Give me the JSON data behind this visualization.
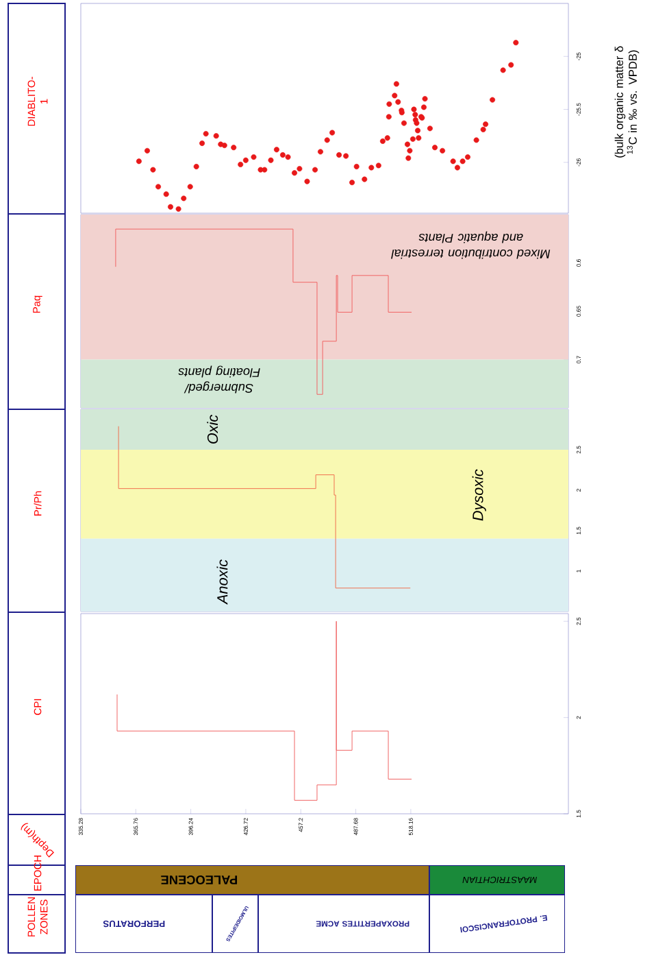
{
  "chart_data": [
    {
      "type": "scatter",
      "title": "DIABLITO-1",
      "ylabel": "(bulk organic matter δ $^{13}$C in ‰ vs. VPDB)",
      "color": "#e8191a",
      "marker": "circle",
      "xlim": [
        335.28,
        605.5
      ],
      "ylim": [
        -26.48,
        -24.5
      ],
      "xticks": [
        335.28,
        365.76,
        396.24,
        426.72,
        457.2,
        487.68,
        518.16
      ],
      "yticks": [
        -26,
        -25.5,
        -25
      ],
      "tick_labels": "y",
      "x": [
        367.5,
        372.1,
        375.3,
        378.2,
        382.6,
        385.0,
        389.4,
        392.3,
        395.9,
        399.3,
        402.5,
        404.6,
        410.3,
        412.8,
        414.9,
        420.0,
        423.8,
        426.7,
        431.1,
        434.9,
        437.1,
        440.6,
        443.8,
        447.2,
        450.1,
        453.7,
        456.5,
        460.7,
        465.1,
        468.1,
        471.8,
        474.6,
        478.4,
        482.2,
        485.6,
        488.1,
        492.5,
        496.3,
        500.3,
        502.6,
        505.2,
        506.0,
        506.2,
        509.2,
        510.2,
        511.1,
        513.0,
        513.2,
        514.4,
        516.3,
        517.6,
        516.8,
        519.3,
        519.9,
        520.6,
        520.8,
        521.4,
        522.0,
        522.5,
        523.9,
        524.4,
        525.4,
        526.0,
        528.8,
        531.5,
        535.7,
        541.6,
        544.0,
        546.9,
        549.7,
        554.5,
        558.3,
        559.6,
        563.4,
        569.3,
        573.7,
        576.4
      ],
      "values": [
        -25.99,
        -25.89,
        -26.07,
        -26.23,
        -26.3,
        -26.42,
        -26.44,
        -26.34,
        -26.23,
        -26.04,
        -25.82,
        -25.73,
        -25.75,
        -25.83,
        -25.84,
        -25.86,
        -26.02,
        -25.98,
        -25.95,
        -26.07,
        -26.07,
        -25.98,
        -25.88,
        -25.93,
        -25.95,
        -26.1,
        -26.06,
        -26.18,
        -26.07,
        -25.9,
        -25.79,
        -25.72,
        -25.93,
        -25.94,
        -26.19,
        -26.04,
        -26.16,
        -26.05,
        -26.03,
        -25.8,
        -25.77,
        -25.57,
        -25.45,
        -25.37,
        -25.26,
        -25.43,
        -25.51,
        -25.53,
        -25.63,
        -25.83,
        -25.89,
        -25.96,
        -25.78,
        -25.5,
        -25.55,
        -25.6,
        -25.63,
        -25.7,
        -25.77,
        -25.57,
        -25.58,
        -25.48,
        -25.4,
        -25.68,
        -25.86,
        -25.89,
        -25.99,
        -26.05,
        -25.99,
        -25.95,
        -25.79,
        -25.69,
        -25.64,
        -25.41,
        -25.13,
        -25.08,
        -24.87
      ]
    },
    {
      "type": "line",
      "title": "Paq",
      "color": "#f06464",
      "xlim": [
        335.28,
        605.5
      ],
      "ylim": [
        0.75,
        0.55
      ],
      "xticks": [
        335.28,
        365.76,
        396.24,
        426.72,
        457.2,
        487.68,
        518.16
      ],
      "yticks": [
        0.6,
        0.65,
        0.7
      ],
      "tick_labels": "y",
      "x": [
        354.6,
        354.6,
        452.9,
        452.9,
        466.2,
        466.2,
        469.3,
        469.3,
        476.9,
        476.9,
        477.6,
        477.6,
        485.6,
        485.6,
        505.7,
        505.7,
        518.6
      ],
      "values": [
        0.604,
        0.565,
        0.565,
        0.62,
        0.62,
        0.736,
        0.736,
        0.681,
        0.681,
        0.613,
        0.613,
        0.651,
        0.651,
        0.613,
        0.613,
        0.651,
        0.651
      ],
      "bands": [
        {
          "axis": "y",
          "from": 0.55,
          "to": 0.7,
          "label": "Mixed contribution terrestrial and aquatic Plants",
          "color": "#f2d2cf"
        },
        {
          "axis": "y",
          "from": 0.7,
          "to": 0.75,
          "label": "Submerged/ Floating plants",
          "color": "#d2e8d6"
        }
      ]
    },
    {
      "type": "line",
      "title": "Pr/Ph",
      "color": "#f07050",
      "xlim": [
        335.28,
        605.5
      ],
      "ylim": [
        0.5,
        3.0
      ],
      "xticks": [
        335.28,
        365.76,
        396.24,
        426.72,
        457.2,
        487.68,
        518.16
      ],
      "yticks": [
        1,
        1.5,
        2,
        2.5
      ],
      "tick_labels": "y",
      "x": [
        356.2,
        356.2,
        465.5,
        465.5,
        475.7,
        475.7,
        476.5,
        476.5,
        517.9
      ],
      "values": [
        2.79,
        2.02,
        2.02,
        2.19,
        2.19,
        1.94,
        1.94,
        0.79,
        0.79
      ],
      "bands": [
        {
          "axis": "y",
          "from": 2.5,
          "to": 3.0,
          "label": "Oxic",
          "color": "#d2e8d6"
        },
        {
          "axis": "y",
          "from": 1.4,
          "to": 2.5,
          "label": "Dysoxic",
          "color": "#f9f9b2"
        },
        {
          "axis": "y",
          "from": 0.5,
          "to": 1.4,
          "label": "Anoxic",
          "color": "#dbeff2"
        }
      ]
    },
    {
      "type": "line",
      "title": "CPI",
      "xlabel": "Depth(m)",
      "color": "#f06464",
      "xlim": [
        335.28,
        605.5
      ],
      "ylim": [
        1.5,
        2.54
      ],
      "xticks": [
        335.28,
        365.76,
        396.24,
        426.72,
        457.2,
        487.68,
        518.16
      ],
      "yticks": [
        1.5,
        2,
        2.5
      ],
      "x": [
        355.4,
        355.4,
        453.7,
        453.7,
        466.2,
        466.2,
        476.9,
        476.9,
        476.9,
        485.6,
        485.6,
        505.7,
        505.7,
        518.6
      ],
      "values": [
        2.12,
        1.93,
        1.93,
        1.57,
        1.57,
        1.65,
        1.65,
        2.5,
        1.83,
        1.83,
        1.93,
        1.93,
        1.68,
        1.68
      ]
    },
    {
      "type": "other",
      "title": "EPOCH",
      "annotations": [
        "PALEOCENE",
        "MAASTRICHTIAN"
      ],
      "colors": [
        "#9c7418",
        "#1a8a3a"
      ]
    },
    {
      "type": "other",
      "title": "POLLEN ZONES",
      "annotations": [
        "PERFORATUS",
        "ULMOIDEIPITES",
        "PROXAPERTITES ACME",
        "E. PROTOFRANCISCOI"
      ]
    }
  ]
}
